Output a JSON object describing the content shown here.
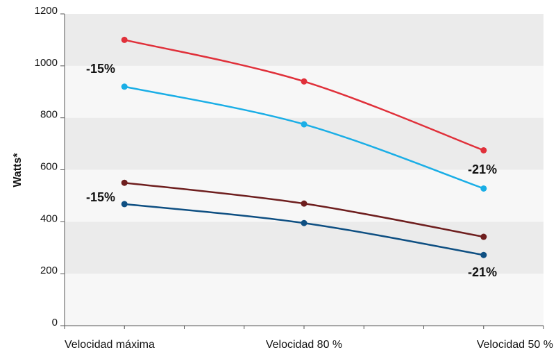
{
  "chart_data": {
    "type": "line",
    "y_label": "Watts*",
    "categories": [
      "Velocidad máxima",
      "Velocidad 80 %",
      "Velocidad 50 %"
    ],
    "series": [
      {
        "color": "#e0303a",
        "values": [
          1100,
          940,
          675
        ]
      },
      {
        "color": "#1aaee6",
        "values": [
          920,
          775,
          528
        ]
      },
      {
        "color": "#6e1e1e",
        "values": [
          550,
          470,
          342
        ]
      },
      {
        "color": "#0e4f82",
        "values": [
          468,
          395,
          272
        ]
      }
    ],
    "annotations": [
      "-15%",
      "-21%",
      "-15%",
      "-21%"
    ],
    "ylim": [
      0,
      1200
    ],
    "yticks": [
      0,
      200,
      400,
      600,
      800,
      1000,
      1200
    ],
    "bands": true
  }
}
